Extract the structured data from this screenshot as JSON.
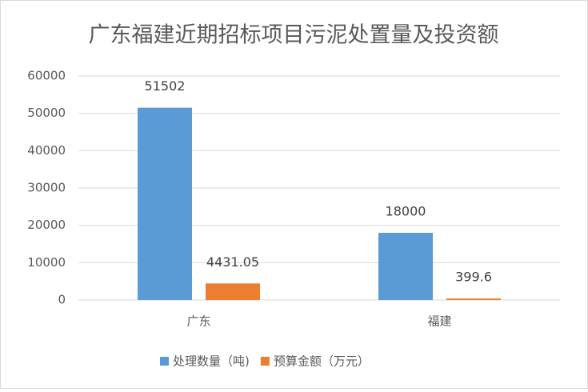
{
  "chart_data": {
    "type": "bar",
    "title": "广东福建近期招标项目污泥处置量及投资额",
    "categories": [
      "广东",
      "福建"
    ],
    "series": [
      {
        "name": "处理数量（吨)",
        "color": "#5b9bd5",
        "values": [
          51502,
          18000
        ]
      },
      {
        "name": "预算金额（万元）",
        "color": "#ed7d31",
        "values": [
          4431.05,
          399.6
        ]
      }
    ],
    "ylim": [
      0,
      60000
    ],
    "yticks": [
      0,
      10000,
      20000,
      30000,
      40000,
      50000,
      60000
    ],
    "grid": true
  }
}
